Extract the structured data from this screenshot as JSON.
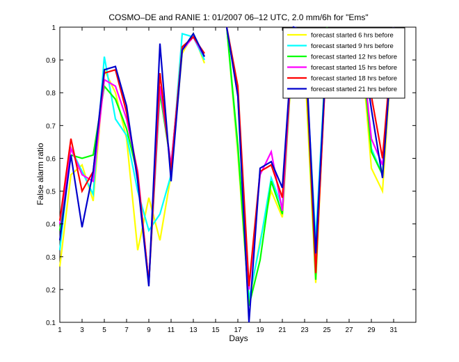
{
  "chart_data": {
    "type": "line",
    "title": "COSMO–DE and RANIE 1: 01/2007 06–12 UTC, 2.0 mm/6h for \"Ems\"",
    "xlabel": "Days",
    "ylabel": "False alarm ratio",
    "xlim": [
      1,
      33
    ],
    "ylim": [
      0.1,
      1
    ],
    "x_ticks": [
      1,
      3,
      5,
      7,
      9,
      11,
      13,
      15,
      17,
      19,
      21,
      23,
      25,
      27,
      29,
      31
    ],
    "y_ticks": [
      0.1,
      0.2,
      0.3,
      0.4,
      0.5,
      0.6,
      0.7,
      0.8,
      0.9,
      1
    ],
    "legend_position": "top-right",
    "grid": false,
    "x": [
      1,
      2,
      3,
      4,
      5,
      6,
      7,
      8,
      9,
      10,
      11,
      12,
      13,
      14,
      15,
      16,
      17,
      18,
      19,
      20,
      21,
      22,
      23,
      24,
      25,
      26,
      27,
      28,
      29,
      30,
      31
    ],
    "series": [
      {
        "name": "forecast started 6 hrs before",
        "color": "#ffff00",
        "values": [
          0.27,
          0.55,
          0.58,
          0.47,
          0.87,
          0.8,
          0.66,
          0.32,
          0.48,
          0.35,
          0.55,
          0.92,
          0.98,
          0.89,
          null,
          1.0,
          0.61,
          0.16,
          0.35,
          0.5,
          0.42,
          0.97,
          0.9,
          0.22,
          0.97,
          0.85,
          0.87,
          0.98,
          0.57,
          0.5,
          1.0
        ]
      },
      {
        "name": "forecast started 9 hrs before",
        "color": "#00ffff",
        "values": [
          0.32,
          0.63,
          0.56,
          0.49,
          0.91,
          0.72,
          0.67,
          0.5,
          0.38,
          0.43,
          0.55,
          0.98,
          0.97,
          0.9,
          null,
          1.0,
          0.63,
          0.17,
          0.34,
          0.54,
          0.45,
          0.98,
          0.95,
          0.35,
          0.96,
          0.86,
          0.87,
          0.98,
          0.63,
          0.55,
          1.0
        ]
      },
      {
        "name": "forecast started 12 hrs before",
        "color": "#00ff00",
        "values": [
          0.38,
          0.61,
          0.6,
          0.61,
          0.82,
          0.78,
          0.69,
          0.55,
          0.22,
          0.8,
          0.58,
          0.93,
          0.98,
          0.91,
          null,
          1.0,
          0.64,
          0.15,
          0.29,
          0.53,
          0.43,
          0.98,
          0.96,
          0.23,
          1.0,
          0.82,
          0.85,
          0.99,
          0.62,
          0.55,
          1.0
        ]
      },
      {
        "name": "forecast started 15 hrs before",
        "color": "#ff00ff",
        "values": [
          0.4,
          0.63,
          0.55,
          0.53,
          0.84,
          0.82,
          0.72,
          0.56,
          0.22,
          0.82,
          0.58,
          0.93,
          0.97,
          0.91,
          null,
          1.0,
          0.79,
          0.2,
          0.55,
          0.62,
          0.44,
          0.99,
          0.98,
          0.26,
          0.94,
          0.8,
          0.84,
          0.99,
          0.66,
          0.58,
          1.0
        ]
      },
      {
        "name": "forecast started 18 hrs before",
        "color": "#ff0000",
        "values": [
          0.41,
          0.66,
          0.5,
          0.56,
          0.86,
          0.87,
          0.74,
          0.55,
          0.22,
          0.86,
          0.56,
          0.94,
          0.97,
          0.92,
          null,
          1.0,
          0.82,
          0.21,
          0.56,
          0.58,
          0.48,
          0.99,
          0.98,
          0.25,
          0.94,
          0.92,
          0.88,
          0.99,
          0.79,
          0.6,
          1.0
        ]
      },
      {
        "name": "forecast started 21 hrs before",
        "color": "#0000cc",
        "values": [
          0.35,
          0.61,
          0.39,
          0.56,
          0.87,
          0.88,
          0.76,
          0.53,
          0.21,
          0.95,
          0.53,
          0.93,
          0.98,
          0.91,
          null,
          1.0,
          0.79,
          0.1,
          0.57,
          0.59,
          0.51,
          1.0,
          0.99,
          0.31,
          0.95,
          0.93,
          0.87,
          0.99,
          0.75,
          0.54,
          1.0
        ]
      }
    ]
  }
}
